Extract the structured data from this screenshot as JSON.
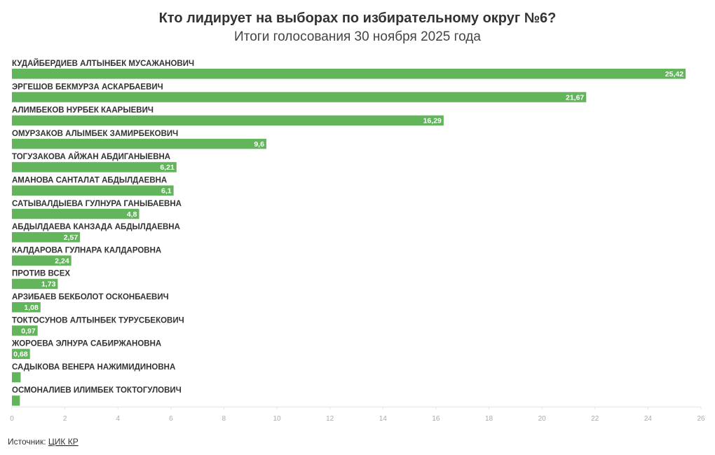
{
  "chart_data": {
    "type": "bar",
    "orientation": "horizontal",
    "title": "Кто лидирует на выборах по избирательному округ №6?",
    "subtitle": "Итоги голосования 30 ноября 2025 года",
    "categories": [
      "КУДАЙБЕРДИЕВ АЛТЫНБЕК МУСАЖАНОВИЧ",
      "ЭРГЕШОВ БЕКМУРЗА АСКАРБАЕВИЧ",
      "АЛИМБЕКОВ НУРБЕК КААРЫЕВИЧ",
      "ОМУРЗАКОВ АЛЫМБЕК ЗАМИРБЕКОВИЧ",
      "ТОГУЗАКОВА АЙЖАН АБДИГАНЫЕВНА",
      "АМАНОВА САНТАЛАТ АБДЫЛДАЕВНА",
      "САТЫВАЛДЫЕВА ГУЛНУРА ГАНЫБАЕВНА",
      "АБДЫЛДАЕВА КАНЗАДА АБДЫЛДАЕВНА",
      "КАЛДАРОВА ГУЛНАРА КАЛДАРОВНА",
      "ПРОТИВ ВСЕХ",
      "АРЗИБАЕВ БЕКБОЛОТ ОСКОНБАЕВИЧ",
      "ТОКТОСУНОВ АЛТЫНБЕК ТУРУСБЕКОВИЧ",
      "ЖОРОЕВА ЭЛНУРА САБИРЖАНОВНА",
      "САДЫКОВА ВЕНЕРА НАЖИМИДИНОВНА",
      "ОСМОНАЛИЕВ ИЛИМБЕК ТОКТОГУЛОВИЧ"
    ],
    "values": [
      25.42,
      21.67,
      16.29,
      9.6,
      6.21,
      6.1,
      4.8,
      2.57,
      2.24,
      1.73,
      1.08,
      0.97,
      0.68,
      0.33,
      0.3
    ],
    "value_labels": [
      "25,42",
      "21,67",
      "16,29",
      "9,6",
      "6,21",
      "6,1",
      "4,8",
      "2,57",
      "2,24",
      "1,73",
      "1,08",
      "0,97",
      "0,68",
      null,
      null
    ],
    "color": "#63b55b",
    "xlim": [
      0,
      26
    ],
    "xticks": [
      0,
      2,
      4,
      6,
      8,
      10,
      12,
      14,
      16,
      18,
      20,
      22,
      24,
      26
    ],
    "source": {
      "label": "Источник:",
      "link": "ЦИК КР"
    }
  }
}
